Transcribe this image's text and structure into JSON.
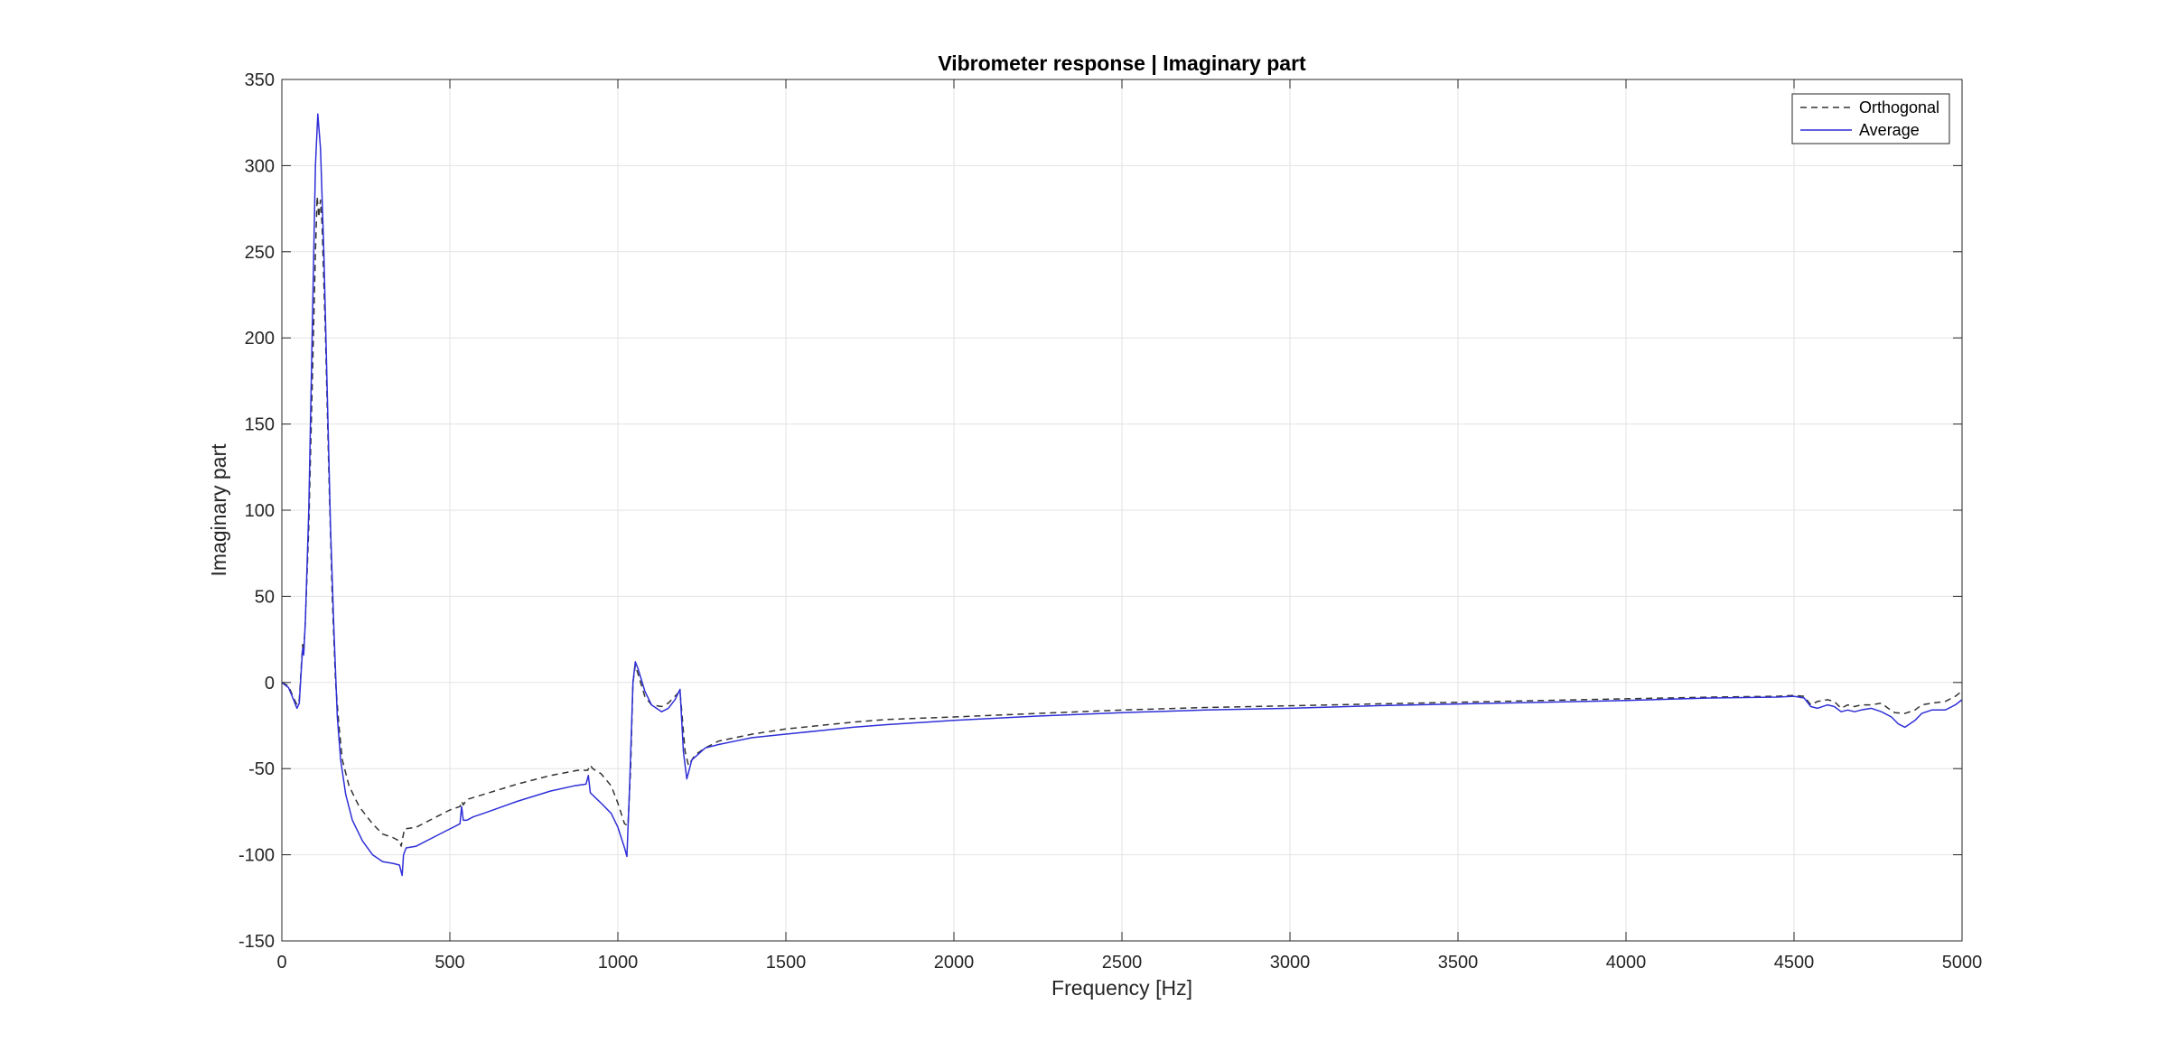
{
  "chart_data": {
    "type": "line",
    "title": "Vibrometer response | Imaginary part",
    "xlabel": "Frequency [Hz]",
    "ylabel": "Imaginary part",
    "xlim": [
      0,
      5000
    ],
    "ylim": [
      -150,
      350
    ],
    "xticks": [
      0,
      500,
      1000,
      1500,
      2000,
      2500,
      3000,
      3500,
      4000,
      4500,
      5000
    ],
    "yticks": [
      -150,
      -100,
      -50,
      0,
      50,
      100,
      150,
      200,
      250,
      300,
      350
    ],
    "grid": true,
    "legend_position": "top-right",
    "series": [
      {
        "name": "Orthogonal",
        "color": "#333333",
        "style": "dashed",
        "points": [
          [
            0,
            0
          ],
          [
            20,
            -2
          ],
          [
            35,
            -9
          ],
          [
            45,
            -13
          ],
          [
            52,
            -10
          ],
          [
            58,
            10
          ],
          [
            62,
            22
          ],
          [
            65,
            18
          ],
          [
            70,
            35
          ],
          [
            80,
            90
          ],
          [
            90,
            170
          ],
          [
            100,
            250
          ],
          [
            105,
            282
          ],
          [
            110,
            270
          ],
          [
            115,
            280
          ],
          [
            120,
            265
          ],
          [
            130,
            200
          ],
          [
            140,
            120
          ],
          [
            150,
            50
          ],
          [
            160,
            0
          ],
          [
            170,
            -25
          ],
          [
            180,
            -45
          ],
          [
            200,
            -60
          ],
          [
            230,
            -72
          ],
          [
            270,
            -82
          ],
          [
            300,
            -88
          ],
          [
            330,
            -90
          ],
          [
            350,
            -92
          ],
          [
            355,
            -95
          ],
          [
            360,
            -90
          ],
          [
            365,
            -85
          ],
          [
            400,
            -84
          ],
          [
            450,
            -79
          ],
          [
            500,
            -74
          ],
          [
            530,
            -72
          ],
          [
            535,
            -69
          ],
          [
            540,
            -71
          ],
          [
            550,
            -68
          ],
          [
            600,
            -65
          ],
          [
            700,
            -59
          ],
          [
            800,
            -54
          ],
          [
            880,
            -51
          ],
          [
            910,
            -51
          ],
          [
            918,
            -48
          ],
          [
            925,
            -50
          ],
          [
            950,
            -53
          ],
          [
            980,
            -60
          ],
          [
            1000,
            -70
          ],
          [
            1020,
            -82
          ],
          [
            1030,
            -83
          ],
          [
            1038,
            -50
          ],
          [
            1045,
            0
          ],
          [
            1052,
            10
          ],
          [
            1060,
            5
          ],
          [
            1080,
            -8
          ],
          [
            1100,
            -13
          ],
          [
            1130,
            -14
          ],
          [
            1150,
            -12
          ],
          [
            1170,
            -8
          ],
          [
            1185,
            -5
          ],
          [
            1200,
            -40
          ],
          [
            1210,
            -48
          ],
          [
            1230,
            -42
          ],
          [
            1260,
            -38
          ],
          [
            1300,
            -34
          ],
          [
            1400,
            -30
          ],
          [
            1500,
            -27
          ],
          [
            1600,
            -25
          ],
          [
            1700,
            -23
          ],
          [
            1800,
            -21.5
          ],
          [
            2000,
            -20
          ],
          [
            2250,
            -18
          ],
          [
            2500,
            -16
          ],
          [
            2750,
            -14.5
          ],
          [
            3000,
            -13.5
          ],
          [
            3250,
            -12.5
          ],
          [
            3500,
            -11.5
          ],
          [
            3750,
            -10.5
          ],
          [
            4000,
            -9.5
          ],
          [
            4250,
            -8.5
          ],
          [
            4450,
            -8
          ],
          [
            4500,
            -7.5
          ],
          [
            4530,
            -8
          ],
          [
            4550,
            -13
          ],
          [
            4570,
            -11
          ],
          [
            4600,
            -10
          ],
          [
            4620,
            -11
          ],
          [
            4640,
            -15
          ],
          [
            4660,
            -13
          ],
          [
            4680,
            -14
          ],
          [
            4700,
            -13
          ],
          [
            4730,
            -13
          ],
          [
            4760,
            -12
          ],
          [
            4780,
            -15
          ],
          [
            4800,
            -17.5
          ],
          [
            4830,
            -18
          ],
          [
            4860,
            -16
          ],
          [
            4880,
            -13
          ],
          [
            4910,
            -12
          ],
          [
            4950,
            -11
          ],
          [
            4980,
            -8
          ],
          [
            5000,
            -5
          ]
        ]
      },
      {
        "name": "Average",
        "color": "#2f2fd8",
        "style": "solid",
        "points": [
          [
            0,
            0
          ],
          [
            20,
            -3
          ],
          [
            35,
            -10
          ],
          [
            45,
            -15
          ],
          [
            52,
            -12
          ],
          [
            58,
            8
          ],
          [
            62,
            20
          ],
          [
            65,
            16
          ],
          [
            70,
            35
          ],
          [
            80,
            100
          ],
          [
            90,
            200
          ],
          [
            100,
            300
          ],
          [
            107,
            330
          ],
          [
            115,
            310
          ],
          [
            125,
            250
          ],
          [
            135,
            170
          ],
          [
            145,
            90
          ],
          [
            155,
            30
          ],
          [
            165,
            -20
          ],
          [
            175,
            -45
          ],
          [
            190,
            -65
          ],
          [
            210,
            -80
          ],
          [
            240,
            -92
          ],
          [
            270,
            -100
          ],
          [
            300,
            -104
          ],
          [
            330,
            -105
          ],
          [
            350,
            -106
          ],
          [
            358,
            -112
          ],
          [
            362,
            -100
          ],
          [
            370,
            -96
          ],
          [
            400,
            -95
          ],
          [
            450,
            -90
          ],
          [
            500,
            -85
          ],
          [
            530,
            -82
          ],
          [
            535,
            -72
          ],
          [
            540,
            -80
          ],
          [
            550,
            -80
          ],
          [
            570,
            -78
          ],
          [
            600,
            -76
          ],
          [
            700,
            -69
          ],
          [
            800,
            -63
          ],
          [
            870,
            -60
          ],
          [
            905,
            -59
          ],
          [
            912,
            -54
          ],
          [
            918,
            -64
          ],
          [
            950,
            -70
          ],
          [
            980,
            -76
          ],
          [
            1000,
            -84
          ],
          [
            1020,
            -96
          ],
          [
            1027,
            -101
          ],
          [
            1035,
            -60
          ],
          [
            1045,
            0
          ],
          [
            1052,
            12
          ],
          [
            1060,
            8
          ],
          [
            1080,
            -5
          ],
          [
            1100,
            -13
          ],
          [
            1130,
            -17
          ],
          [
            1150,
            -15
          ],
          [
            1170,
            -10
          ],
          [
            1185,
            -4
          ],
          [
            1195,
            -40
          ],
          [
            1205,
            -56
          ],
          [
            1220,
            -45
          ],
          [
            1260,
            -38
          ],
          [
            1300,
            -36
          ],
          [
            1350,
            -34
          ],
          [
            1400,
            -32
          ],
          [
            1500,
            -30
          ],
          [
            1600,
            -28
          ],
          [
            1700,
            -26
          ],
          [
            1800,
            -24.5
          ],
          [
            2000,
            -22
          ],
          [
            2250,
            -19.5
          ],
          [
            2500,
            -17.5
          ],
          [
            2750,
            -16
          ],
          [
            3000,
            -15
          ],
          [
            3250,
            -13.5
          ],
          [
            3500,
            -12.5
          ],
          [
            3750,
            -11.5
          ],
          [
            4000,
            -10.5
          ],
          [
            4250,
            -9
          ],
          [
            4450,
            -8.5
          ],
          [
            4500,
            -8
          ],
          [
            4530,
            -9
          ],
          [
            4550,
            -14
          ],
          [
            4570,
            -15
          ],
          [
            4600,
            -13
          ],
          [
            4620,
            -14
          ],
          [
            4640,
            -17
          ],
          [
            4660,
            -16
          ],
          [
            4680,
            -17
          ],
          [
            4700,
            -16
          ],
          [
            4730,
            -15
          ],
          [
            4760,
            -17
          ],
          [
            4790,
            -20
          ],
          [
            4810,
            -24
          ],
          [
            4830,
            -26
          ],
          [
            4860,
            -22
          ],
          [
            4880,
            -18
          ],
          [
            4910,
            -16
          ],
          [
            4950,
            -16
          ],
          [
            4980,
            -13
          ],
          [
            5000,
            -10
          ]
        ]
      }
    ]
  }
}
